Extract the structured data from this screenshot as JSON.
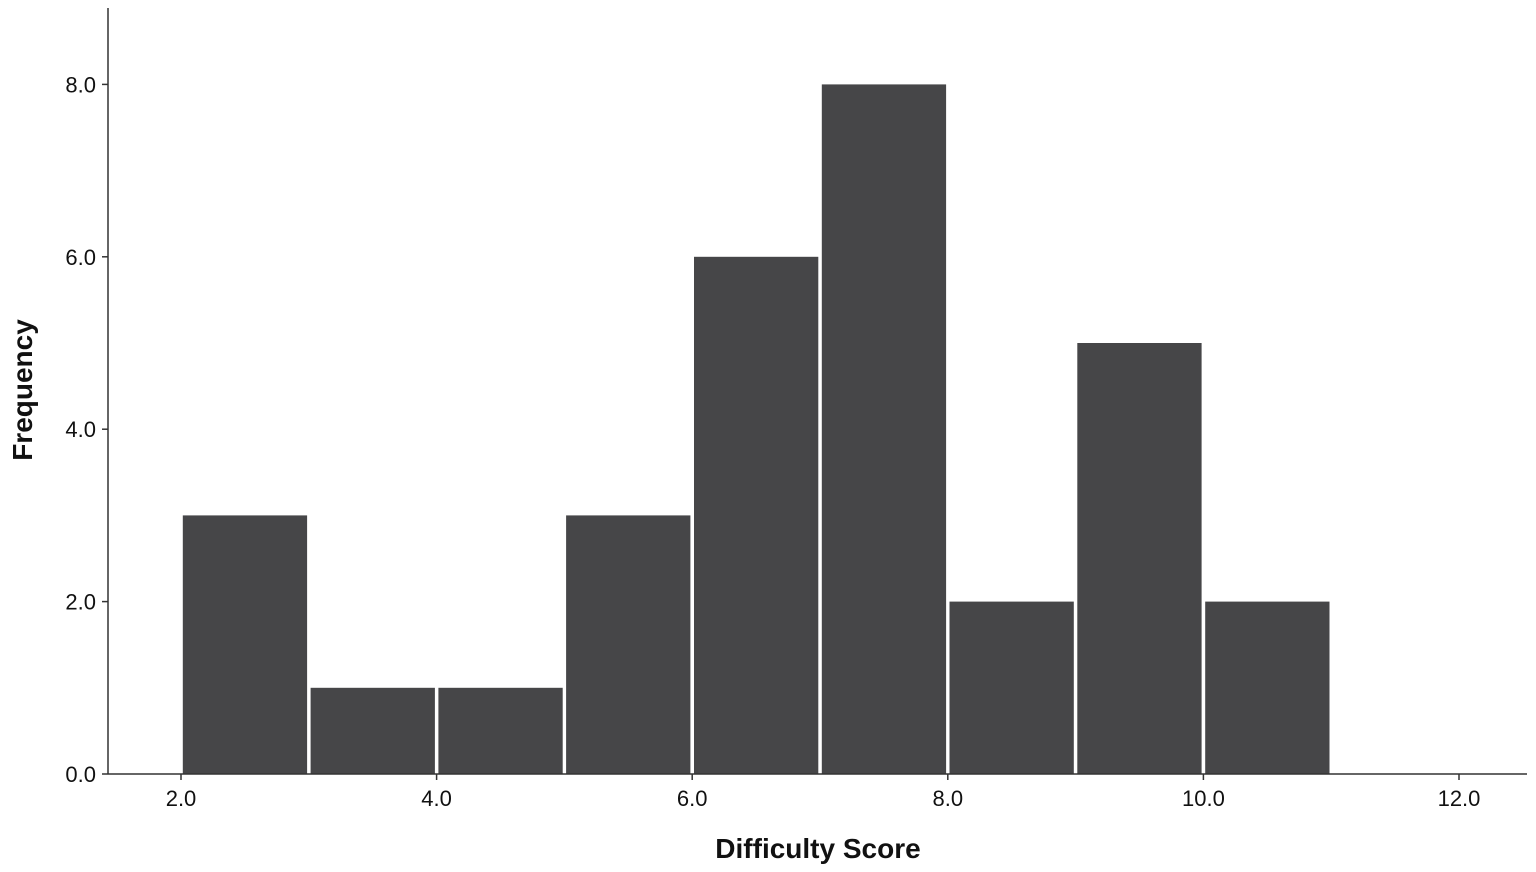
{
  "chart_data": {
    "type": "bar",
    "subtype": "histogram",
    "xlabel": "Difficulty Score",
    "ylabel": "Frequency",
    "xlim": [
      1.4,
      12.5
    ],
    "ylim": [
      0,
      8.9
    ],
    "x_ticks": [
      2.0,
      4.0,
      6.0,
      8.0,
      10.0,
      12.0
    ],
    "x_tick_labels": [
      "2.0",
      "4.0",
      "6.0",
      "8.0",
      "10.0",
      "12.0"
    ],
    "y_ticks": [
      0,
      2,
      4,
      6,
      8
    ],
    "y_tick_labels": [
      "0.0",
      "2.0",
      "4.0",
      "6.0",
      "8.0"
    ],
    "bins": [
      {
        "start": 2,
        "end": 3,
        "value": 3
      },
      {
        "start": 3,
        "end": 4,
        "value": 1
      },
      {
        "start": 4,
        "end": 5,
        "value": 1
      },
      {
        "start": 5,
        "end": 6,
        "value": 3
      },
      {
        "start": 6,
        "end": 7,
        "value": 6
      },
      {
        "start": 7,
        "end": 8,
        "value": 8
      },
      {
        "start": 8,
        "end": 9,
        "value": 2
      },
      {
        "start": 9,
        "end": 10,
        "value": 5
      },
      {
        "start": 10,
        "end": 11,
        "value": 2
      }
    ],
    "bar_color": "#464648",
    "grid": false,
    "legend": "none"
  }
}
